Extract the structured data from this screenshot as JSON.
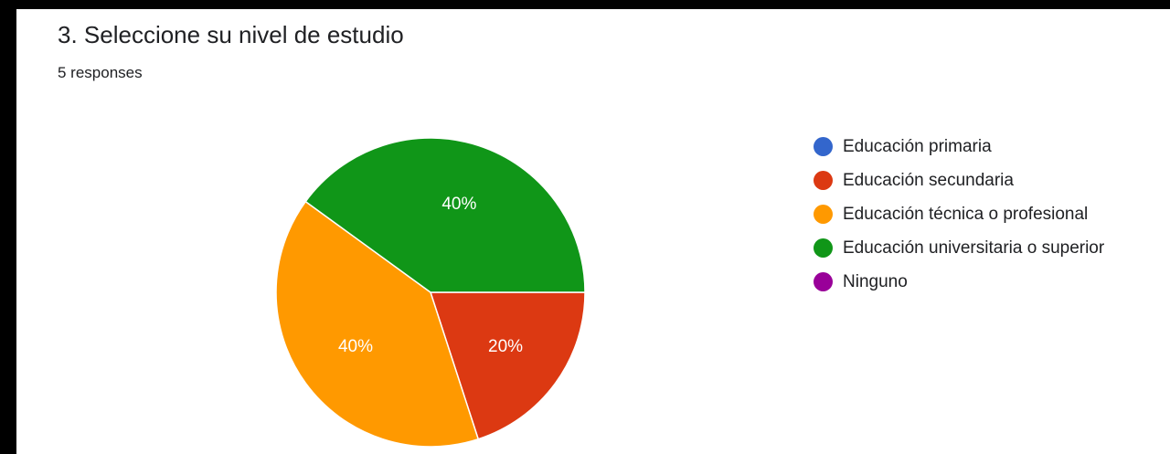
{
  "question": {
    "title": "3. Seleccione su nivel de estudio",
    "responses": "5 responses"
  },
  "chart_data": {
    "type": "pie",
    "title": "3. Seleccione su nivel de estudio",
    "categories": [
      "Educación primaria",
      "Educación secundaria",
      "Educación técnica o profesional",
      "Educación universitaria o superior",
      "Ninguno"
    ],
    "values": [
      0,
      20,
      40,
      40,
      0
    ],
    "value_labels": [
      "",
      "20%",
      "40%",
      "40%",
      ""
    ],
    "colors": [
      "#3366cc",
      "#dc3912",
      "#ff9900",
      "#109618",
      "#990099"
    ],
    "legend_position": "right",
    "start_angle_deg": 90,
    "direction": "clockwise"
  }
}
